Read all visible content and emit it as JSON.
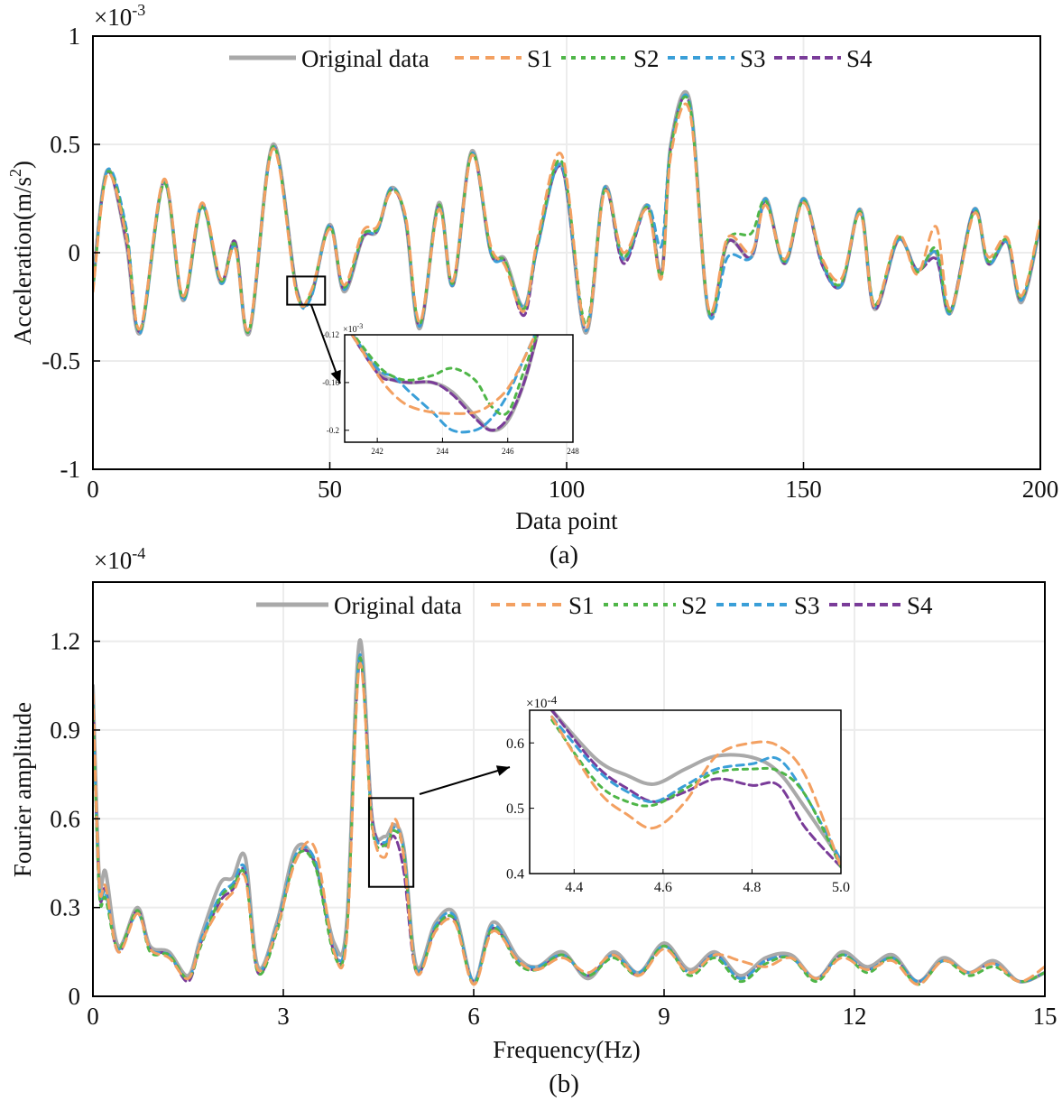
{
  "series_styles": [
    {
      "key": "orig",
      "color": "#a9a9a9",
      "dash": "none",
      "width": 4
    },
    {
      "key": "s1",
      "color": "#f3a061",
      "dash": "10,7",
      "width": 3
    },
    {
      "key": "s2",
      "color": "#4fb648",
      "dash": "5,6",
      "width": 3
    },
    {
      "key": "s3",
      "color": "#3a9fd8",
      "dash": "8,6",
      "width": 3
    },
    {
      "key": "s4",
      "color": "#7a3c99",
      "dash": "9,5",
      "width": 3
    }
  ],
  "chart_data": [
    {
      "id": "a",
      "type": "line",
      "panel_label": "(a)",
      "exponent_label": "×10",
      "exponent_power": "-3",
      "xlabel": "Data point",
      "ylabel_main": "Acceleration(m/s",
      "ylabel_sup": "2",
      "ylabel_end": ")",
      "xlim": [
        0,
        200
      ],
      "ylim": [
        -1,
        1
      ],
      "xticks": [
        0,
        50,
        100,
        150,
        200
      ],
      "xtick_labels": [
        "0",
        "50",
        "100",
        "150",
        "200"
      ],
      "yticks": [
        -1,
        -0.5,
        0,
        0.5,
        1
      ],
      "ytick_labels": [
        "-1",
        "-0.5",
        "0",
        "0.5",
        "1"
      ],
      "grid": true,
      "legend_position": "top-center",
      "legend": [
        "Original data",
        "S1",
        "S2",
        "S3",
        "S4"
      ],
      "x": [
        0,
        3,
        7,
        10,
        15,
        19,
        23,
        27,
        30,
        33,
        38,
        43,
        46,
        50,
        53,
        57,
        60,
        63,
        66,
        69,
        73,
        76,
        80,
        84,
        87,
        91,
        94,
        99,
        104,
        108,
        112,
        117,
        120,
        122,
        126,
        130,
        134,
        139,
        142,
        146,
        150,
        154,
        158,
        162,
        165,
        170,
        174,
        178,
        181,
        186,
        189,
        193,
        196,
        200
      ],
      "series": [
        {
          "name": "Original data",
          "values": [
            -0.15,
            0.38,
            0.05,
            -0.37,
            0.33,
            -0.22,
            0.22,
            -0.14,
            0.05,
            -0.37,
            0.5,
            -0.17,
            -0.2,
            0.13,
            -0.18,
            0.07,
            0.1,
            0.3,
            0.15,
            -0.35,
            0.23,
            -0.15,
            0.47,
            0.0,
            -0.03,
            -0.25,
            0.05,
            0.4,
            -0.37,
            0.3,
            -0.03,
            0.22,
            -0.1,
            0.5,
            0.7,
            -0.28,
            0.05,
            -0.02,
            0.25,
            -0.05,
            0.25,
            -0.05,
            -0.15,
            0.2,
            -0.26,
            0.06,
            -0.08,
            0.0,
            -0.28,
            0.2,
            -0.05,
            0.05,
            -0.23,
            0.13
          ]
        },
        {
          "name": "S1",
          "values": [
            -0.18,
            0.36,
            0.08,
            -0.35,
            0.34,
            -0.2,
            0.23,
            -0.12,
            0.02,
            -0.35,
            0.48,
            -0.19,
            -0.18,
            0.11,
            -0.15,
            0.1,
            0.12,
            0.28,
            0.17,
            -0.32,
            0.2,
            -0.13,
            0.45,
            0.03,
            -0.06,
            -0.27,
            0.08,
            0.45,
            -0.35,
            0.28,
            0.0,
            0.2,
            -0.12,
            0.45,
            0.65,
            -0.26,
            0.07,
            0.0,
            0.22,
            -0.03,
            0.23,
            -0.03,
            -0.12,
            0.18,
            -0.25,
            0.08,
            -0.1,
            0.12,
            -0.26,
            0.18,
            -0.02,
            0.07,
            -0.2,
            0.15
          ]
        },
        {
          "name": "S2",
          "values": [
            -0.17,
            0.37,
            0.1,
            -0.36,
            0.32,
            -0.21,
            0.21,
            -0.13,
            0.04,
            -0.36,
            0.49,
            -0.18,
            -0.19,
            0.12,
            -0.16,
            0.08,
            0.11,
            0.29,
            0.16,
            -0.33,
            0.22,
            -0.14,
            0.46,
            0.01,
            -0.04,
            -0.26,
            0.06,
            0.42,
            -0.33,
            0.29,
            -0.02,
            0.21,
            -0.11,
            0.48,
            0.68,
            -0.27,
            0.06,
            0.09,
            0.24,
            -0.04,
            0.24,
            -0.04,
            -0.14,
            0.19,
            -0.24,
            0.07,
            -0.09,
            0.02,
            -0.27,
            0.19,
            -0.04,
            0.06,
            -0.21,
            0.14
          ]
        },
        {
          "name": "S3",
          "values": [
            -0.16,
            0.38,
            0.12,
            -0.37,
            0.33,
            -0.22,
            0.22,
            -0.14,
            0.03,
            -0.36,
            0.49,
            -0.18,
            -0.21,
            0.13,
            -0.17,
            0.08,
            0.1,
            0.3,
            0.15,
            -0.34,
            0.22,
            -0.15,
            0.46,
            0.0,
            -0.05,
            -0.25,
            0.04,
            0.4,
            -0.36,
            0.3,
            -0.03,
            0.22,
            0.03,
            0.49,
            0.69,
            -0.28,
            -0.02,
            -0.02,
            0.25,
            -0.05,
            0.25,
            -0.05,
            -0.15,
            0.2,
            -0.25,
            0.06,
            -0.08,
            0.0,
            -0.28,
            0.2,
            -0.05,
            0.05,
            -0.22,
            0.13
          ]
        },
        {
          "name": "S4",
          "values": [
            -0.15,
            0.37,
            0.06,
            -0.36,
            0.33,
            -0.21,
            0.22,
            -0.13,
            0.05,
            -0.36,
            0.49,
            -0.17,
            -0.2,
            0.12,
            -0.17,
            0.07,
            0.1,
            0.29,
            0.15,
            -0.34,
            0.22,
            -0.15,
            0.46,
            0.0,
            -0.04,
            -0.29,
            0.05,
            0.39,
            -0.36,
            0.29,
            -0.05,
            0.21,
            -0.1,
            0.49,
            0.68,
            -0.27,
            0.05,
            -0.02,
            0.24,
            -0.05,
            0.24,
            -0.06,
            -0.15,
            0.19,
            -0.26,
            0.06,
            -0.08,
            -0.03,
            -0.27,
            0.2,
            -0.05,
            0.05,
            -0.22,
            0.13
          ]
        }
      ],
      "zoom_box": {
        "xlim": [
          41,
          49
        ],
        "ylim": [
          -0.24,
          -0.11
        ]
      },
      "inset": {
        "exponent_label": "×10",
        "exponent_power": "-3",
        "xlim": [
          241,
          248
        ],
        "ylim": [
          -0.21,
          -0.12
        ],
        "xticks": [
          242,
          244,
          246,
          248
        ],
        "xtick_labels": [
          "242",
          "244",
          "246",
          "248"
        ],
        "yticks": [
          -0.12,
          -0.16,
          -0.2
        ],
        "ytick_labels": [
          "-0.12",
          "-0.16",
          "-0.2"
        ],
        "x": [
          241,
          242,
          242.5,
          243,
          243.7,
          244.3,
          245,
          245.5,
          246,
          246.5,
          247
        ],
        "series": [
          {
            "name": "Original data",
            "values": [
              -0.11,
              -0.15,
              -0.158,
              -0.16,
              -0.16,
              -0.168,
              -0.188,
              -0.2,
              -0.192,
              -0.16,
              -0.11
            ]
          },
          {
            "name": "S1",
            "values": [
              -0.11,
              -0.153,
              -0.17,
              -0.18,
              -0.185,
              -0.186,
              -0.185,
              -0.178,
              -0.165,
              -0.14,
              -0.11
            ]
          },
          {
            "name": "S2",
            "values": [
              -0.11,
              -0.145,
              -0.155,
              -0.158,
              -0.154,
              -0.148,
              -0.158,
              -0.18,
              -0.185,
              -0.15,
              -0.11
            ]
          },
          {
            "name": "S3",
            "values": [
              -0.11,
              -0.148,
              -0.155,
              -0.168,
              -0.185,
              -0.2,
              -0.2,
              -0.19,
              -0.17,
              -0.14,
              -0.11
            ]
          },
          {
            "name": "S4",
            "values": [
              -0.11,
              -0.152,
              -0.158,
              -0.16,
              -0.16,
              -0.17,
              -0.19,
              -0.2,
              -0.19,
              -0.16,
              -0.11
            ]
          }
        ]
      }
    },
    {
      "id": "b",
      "type": "line",
      "panel_label": "(b)",
      "exponent_label": "×10",
      "exponent_power": "-4",
      "xlabel": "Frequency(Hz)",
      "ylabel_main": "Fourier amplitude",
      "ylabel_sup": "",
      "ylabel_end": "",
      "xlim": [
        0,
        15
      ],
      "ylim": [
        0,
        1.4
      ],
      "xticks": [
        0,
        3,
        6,
        9,
        12,
        15
      ],
      "xtick_labels": [
        "0",
        "3",
        "6",
        "9",
        "12",
        "15"
      ],
      "yticks": [
        0,
        0.3,
        0.6,
        0.9,
        1.2
      ],
      "ytick_labels": [
        "0",
        "0.3",
        "0.6",
        "0.9",
        "1.2"
      ],
      "grid": true,
      "legend_position": "top-right",
      "legend": [
        "Original data",
        "S1",
        "S2",
        "S3",
        "S4"
      ],
      "x": [
        0,
        0.1,
        0.2,
        0.4,
        0.7,
        0.9,
        1.2,
        1.5,
        1.7,
        2.0,
        2.2,
        2.4,
        2.6,
        2.9,
        3.2,
        3.5,
        3.8,
        4.0,
        4.2,
        4.4,
        4.6,
        4.75,
        4.9,
        5.1,
        5.4,
        5.7,
        6.0,
        6.3,
        6.7,
        7.0,
        7.4,
        7.8,
        8.2,
        8.6,
        9.0,
        9.4,
        9.8,
        10.2,
        10.6,
        11.0,
        11.4,
        11.8,
        12.2,
        12.6,
        13.0,
        13.4,
        13.8,
        14.2,
        14.6,
        15.0
      ],
      "series": [
        {
          "name": "Original data",
          "values": [
            1.05,
            0.4,
            0.42,
            0.17,
            0.3,
            0.17,
            0.15,
            0.07,
            0.2,
            0.38,
            0.4,
            0.47,
            0.1,
            0.25,
            0.5,
            0.45,
            0.18,
            0.25,
            1.2,
            0.6,
            0.54,
            0.58,
            0.5,
            0.1,
            0.25,
            0.28,
            0.05,
            0.25,
            0.13,
            0.1,
            0.15,
            0.06,
            0.15,
            0.08,
            0.18,
            0.09,
            0.15,
            0.07,
            0.13,
            0.14,
            0.06,
            0.15,
            0.1,
            0.14,
            0.05,
            0.13,
            0.08,
            0.12,
            0.05,
            0.08
          ]
        },
        {
          "name": "S1",
          "values": [
            1.02,
            0.38,
            0.37,
            0.15,
            0.28,
            0.16,
            0.13,
            0.06,
            0.18,
            0.3,
            0.35,
            0.4,
            0.09,
            0.23,
            0.46,
            0.5,
            0.15,
            0.2,
            1.12,
            0.58,
            0.47,
            0.6,
            0.47,
            0.08,
            0.22,
            0.25,
            0.04,
            0.22,
            0.12,
            0.09,
            0.13,
            0.08,
            0.14,
            0.07,
            0.16,
            0.08,
            0.14,
            0.12,
            0.1,
            0.13,
            0.06,
            0.13,
            0.09,
            0.12,
            0.04,
            0.12,
            0.08,
            0.11,
            0.05,
            0.1
          ]
        },
        {
          "name": "S2",
          "values": [
            0.98,
            0.35,
            0.33,
            0.16,
            0.29,
            0.15,
            0.14,
            0.06,
            0.17,
            0.33,
            0.37,
            0.41,
            0.08,
            0.22,
            0.47,
            0.44,
            0.14,
            0.22,
            1.14,
            0.57,
            0.51,
            0.56,
            0.48,
            0.08,
            0.23,
            0.26,
            0.04,
            0.23,
            0.11,
            0.09,
            0.14,
            0.07,
            0.13,
            0.07,
            0.17,
            0.07,
            0.13,
            0.05,
            0.11,
            0.13,
            0.05,
            0.14,
            0.08,
            0.13,
            0.04,
            0.12,
            0.07,
            0.1,
            0.05,
            0.08
          ]
        },
        {
          "name": "S3",
          "values": [
            1.0,
            0.37,
            0.35,
            0.16,
            0.28,
            0.16,
            0.14,
            0.06,
            0.19,
            0.34,
            0.38,
            0.43,
            0.09,
            0.24,
            0.48,
            0.46,
            0.16,
            0.23,
            1.15,
            0.59,
            0.52,
            0.57,
            0.49,
            0.09,
            0.24,
            0.27,
            0.05,
            0.24,
            0.12,
            0.1,
            0.14,
            0.07,
            0.14,
            0.08,
            0.17,
            0.08,
            0.14,
            0.06,
            0.12,
            0.13,
            0.06,
            0.14,
            0.09,
            0.13,
            0.05,
            0.12,
            0.08,
            0.11,
            0.05,
            0.08
          ]
        },
        {
          "name": "S4",
          "values": [
            1.01,
            0.36,
            0.36,
            0.15,
            0.29,
            0.16,
            0.14,
            0.05,
            0.18,
            0.32,
            0.36,
            0.42,
            0.08,
            0.23,
            0.47,
            0.45,
            0.15,
            0.22,
            1.13,
            0.6,
            0.51,
            0.54,
            0.42,
            0.08,
            0.23,
            0.26,
            0.05,
            0.23,
            0.12,
            0.09,
            0.14,
            0.07,
            0.14,
            0.07,
            0.17,
            0.08,
            0.14,
            0.06,
            0.12,
            0.13,
            0.06,
            0.14,
            0.09,
            0.13,
            0.05,
            0.12,
            0.08,
            0.11,
            0.05,
            0.08
          ]
        }
      ],
      "zoom_box": {
        "xlim": [
          4.35,
          5.05
        ],
        "ylim": [
          0.37,
          0.67
        ]
      },
      "inset": {
        "exponent_label": "×10",
        "exponent_power": "-4",
        "xlim": [
          4.3,
          5.0
        ],
        "ylim": [
          0.4,
          0.65
        ],
        "xticks": [
          4.4,
          4.6,
          4.8,
          5.0
        ],
        "xtick_labels": [
          "4.4",
          "4.6",
          "4.8",
          "5.0"
        ],
        "yticks": [
          0.4,
          0.5,
          0.6
        ],
        "ytick_labels": [
          "0.4",
          "0.5",
          "0.6"
        ],
        "x": [
          4.35,
          4.45,
          4.52,
          4.58,
          4.65,
          4.72,
          4.8,
          4.86,
          4.92,
          5.0
        ],
        "series": [
          {
            "name": "Original data",
            "values": [
              0.65,
              0.575,
              0.55,
              0.537,
              0.56,
              0.58,
              0.578,
              0.555,
              0.5,
              0.42
            ]
          },
          {
            "name": "S1",
            "values": [
              0.64,
              0.53,
              0.49,
              0.47,
              0.51,
              0.58,
              0.6,
              0.595,
              0.55,
              0.41
            ]
          },
          {
            "name": "S2",
            "values": [
              0.635,
              0.54,
              0.51,
              0.505,
              0.53,
              0.555,
              0.56,
              0.557,
              0.52,
              0.41
            ]
          },
          {
            "name": "S3",
            "values": [
              0.64,
              0.56,
              0.525,
              0.51,
              0.535,
              0.56,
              0.568,
              0.575,
              0.52,
              0.42
            ]
          },
          {
            "name": "S4",
            "values": [
              0.65,
              0.565,
              0.53,
              0.51,
              0.525,
              0.545,
              0.535,
              0.535,
              0.47,
              0.41
            ]
          }
        ]
      }
    }
  ]
}
